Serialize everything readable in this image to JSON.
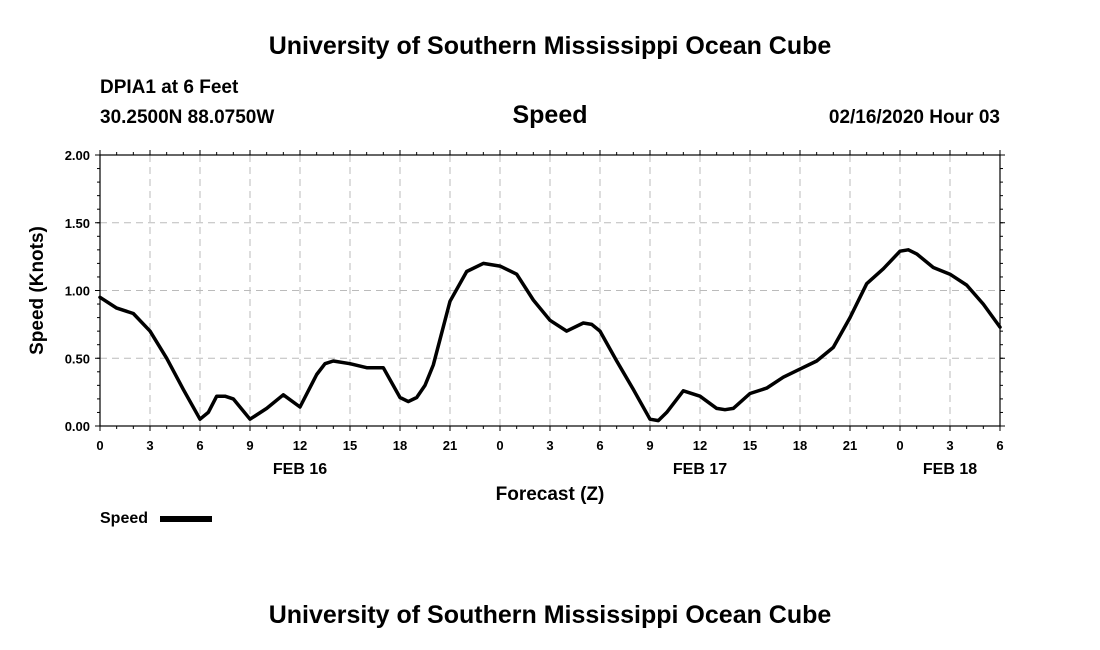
{
  "header": {
    "title": "University of Southern Mississippi Ocean Cube",
    "station": "DPIA1 at 6 Feet",
    "coords": "30.2500N 88.0750W",
    "variable": "Speed",
    "datetime": "02/16/2020 Hour 03"
  },
  "footer": {
    "title": "University of Southern Mississippi Ocean Cube"
  },
  "legend": {
    "label": "Speed"
  },
  "chart_data": {
    "type": "line",
    "title": "Speed",
    "xlabel": "Forecast (Z)",
    "ylabel": "Speed (Knots)",
    "xlim": [
      0,
      54
    ],
    "ylim": [
      0,
      2
    ],
    "ytick_labels": [
      "0.00",
      "0.50",
      "1.00",
      "1.50",
      "2.00"
    ],
    "ytick_values": [
      0,
      0.5,
      1.0,
      1.5,
      2.0
    ],
    "xtick_hours": [
      0,
      3,
      6,
      9,
      12,
      15,
      18,
      21,
      24,
      27,
      30,
      33,
      36,
      39,
      42,
      45,
      48,
      51,
      54
    ],
    "xtick_labels": [
      "0",
      "3",
      "6",
      "9",
      "12",
      "15",
      "18",
      "21",
      "0",
      "3",
      "6",
      "9",
      "12",
      "15",
      "18",
      "21",
      "0",
      "3",
      "6"
    ],
    "date_labels": [
      {
        "hour": 12,
        "label": "FEB 16"
      },
      {
        "hour": 36,
        "label": "FEB 17"
      },
      {
        "hour": 51,
        "label": "FEB 18"
      }
    ],
    "grid": true,
    "legend_position": "bottom-left",
    "series": [
      {
        "name": "Speed",
        "color": "#000000",
        "x": [
          0,
          1,
          2,
          3,
          4,
          5,
          6,
          6.5,
          7,
          7.5,
          8,
          9,
          10,
          11,
          12,
          13,
          13.5,
          14,
          15,
          16,
          17,
          18,
          18.5,
          19,
          19.5,
          20,
          21,
          22,
          23,
          24,
          25,
          26,
          27,
          28,
          29,
          29.5,
          30,
          31,
          32,
          33,
          33.5,
          34,
          35,
          36,
          37,
          37.5,
          38,
          39,
          40,
          41,
          42,
          43,
          44,
          45,
          46,
          47,
          48,
          48.5,
          49,
          50,
          51,
          52,
          53,
          54
        ],
        "y": [
          0.95,
          0.87,
          0.83,
          0.7,
          0.5,
          0.27,
          0.05,
          0.1,
          0.22,
          0.22,
          0.2,
          0.05,
          0.13,
          0.23,
          0.14,
          0.38,
          0.46,
          0.48,
          0.46,
          0.43,
          0.43,
          0.21,
          0.18,
          0.21,
          0.3,
          0.45,
          0.92,
          1.14,
          1.2,
          1.18,
          1.12,
          0.93,
          0.78,
          0.7,
          0.76,
          0.75,
          0.7,
          0.48,
          0.27,
          0.05,
          0.04,
          0.1,
          0.26,
          0.22,
          0.13,
          0.12,
          0.13,
          0.24,
          0.28,
          0.36,
          0.42,
          0.48,
          0.58,
          0.8,
          1.05,
          1.16,
          1.29,
          1.3,
          1.27,
          1.17,
          1.12,
          1.04,
          0.9,
          0.73
        ]
      }
    ]
  }
}
